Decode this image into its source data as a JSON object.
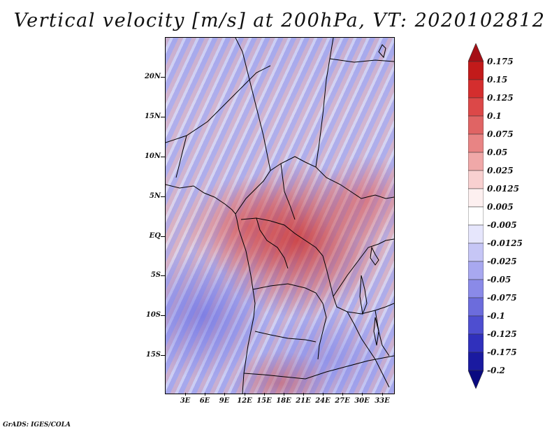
{
  "title": "Vertical velocity [m/s] at 200hPa, VT: 2020102812",
  "map": {
    "latitude_labels": [
      "20N",
      "15N",
      "10N",
      "5N",
      "EQ",
      "5S",
      "10S",
      "15S"
    ],
    "longitude_labels": [
      "3E",
      "6E",
      "9E",
      "12E",
      "15E",
      "18E",
      "21E",
      "24E",
      "27E",
      "30E",
      "33E"
    ]
  },
  "colorbar": {
    "labels": [
      "0.175",
      "0.15",
      "0.125",
      "0.1",
      "0.075",
      "0.05",
      "0.025",
      "0.0125",
      "0.005",
      "-0.005",
      "-0.0125",
      "-0.025",
      "-0.05",
      "-0.075",
      "-0.1",
      "-0.125",
      "-0.175",
      "-0.2"
    ],
    "colors": [
      "#a50f15",
      "#c21a1a",
      "#d42e2e",
      "#dc4848",
      "#e06464",
      "#e88484",
      "#f0a8a8",
      "#f8d0d0",
      "#fdf0f0",
      "#ffffff",
      "#e6e6fc",
      "#c6c6f6",
      "#a8a8f0",
      "#8a8ae8",
      "#6c6cdc",
      "#4e4ed0",
      "#3030bc",
      "#1a1aa0",
      "#0a0a80"
    ]
  },
  "credit": "GrADS: IGES/COLA"
}
